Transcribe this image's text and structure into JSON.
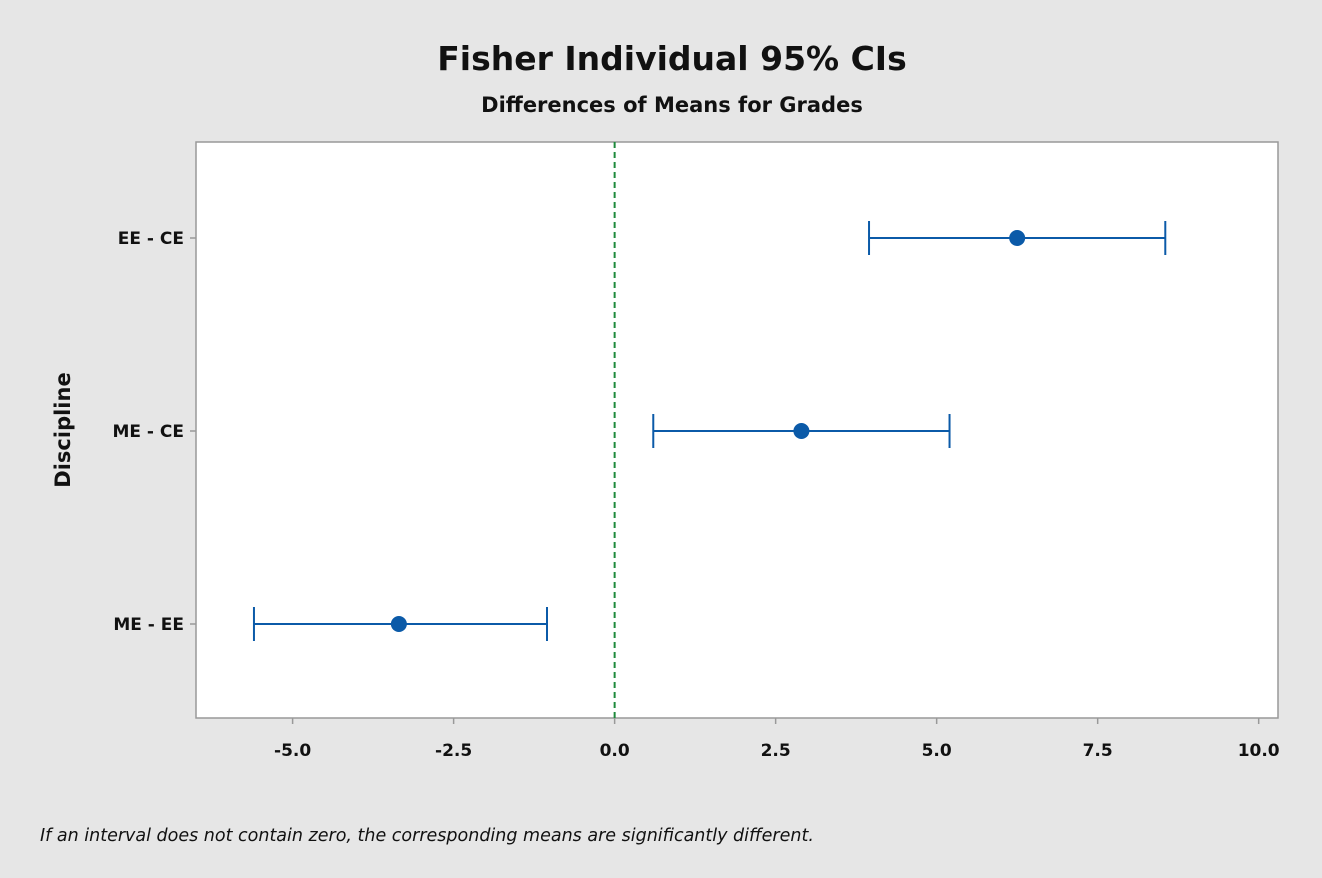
{
  "colors": {
    "background": "#e6e6e6",
    "plot_background": "#ffffff",
    "series": "#0b5aa8",
    "reference_line": "#1e8a3c",
    "frame": "#999999",
    "text": "#111111"
  },
  "footnote": "If an interval does not contain zero, the corresponding means are significantly different.",
  "chart_data": {
    "type": "interval",
    "title": "Fisher Individual 95% CIs",
    "subtitle": "Differences of Means for Grades",
    "xlabel": "",
    "ylabel": "Discipline",
    "xlim": [
      -6.5,
      10.3
    ],
    "xticks": [
      -5.0,
      -2.5,
      0.0,
      2.5,
      5.0,
      7.5,
      10.0
    ],
    "xtick_labels": [
      "-5.0",
      "-2.5",
      "0.0",
      "2.5",
      "5.0",
      "7.5",
      "10.0"
    ],
    "reference_line": 0.0,
    "reference_style": "dashed",
    "grid": false,
    "categories": [
      "EE - CE",
      "ME - CE",
      "ME - EE"
    ],
    "series": [
      {
        "estimate": [
          6.25,
          2.9,
          -3.35
        ],
        "lower": [
          3.95,
          0.6,
          -5.6
        ],
        "upper": [
          8.55,
          5.2,
          -1.05
        ]
      }
    ]
  }
}
